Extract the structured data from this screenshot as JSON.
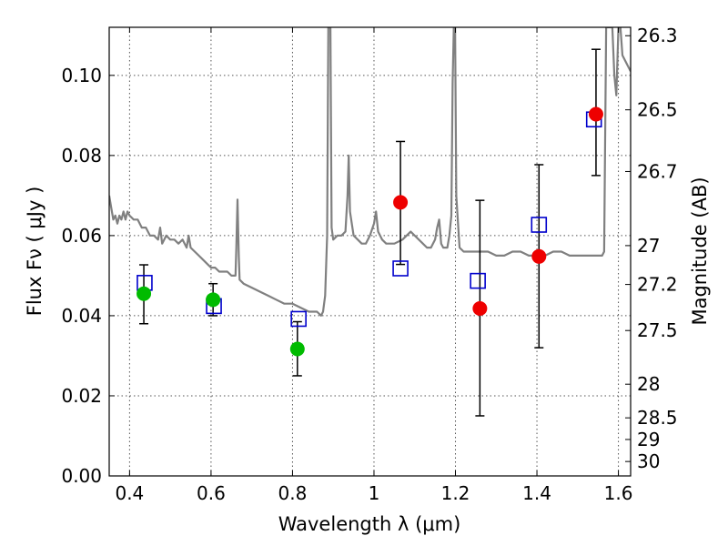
{
  "chart_data": {
    "type": "scatter",
    "title": "",
    "xlabel": "Wavelength  λ (μm)",
    "ylabel": "Flux  Fν  ( μJy )",
    "ylabel_right": "Magnitude (AB)",
    "xlim": [
      0.35,
      1.63
    ],
    "ylim": [
      0.0,
      0.112
    ],
    "grid": true,
    "x_ticks": [
      0.4,
      0.6,
      0.8,
      1.0,
      1.2,
      1.4,
      1.6
    ],
    "x_tick_labels": [
      "0.4",
      "0.6",
      "0.8",
      "1",
      "1.2",
      "1.4",
      "1.6"
    ],
    "y_ticks": [
      0.0,
      0.02,
      0.04,
      0.06,
      0.08,
      0.1
    ],
    "y_tick_labels": [
      "0.00",
      "0.02",
      "0.04",
      "0.06",
      "0.08",
      "0.10"
    ],
    "right_ticks": [
      {
        "flux": 0.1099,
        "label": "26.3"
      },
      {
        "flux": 0.0914,
        "label": "26.5"
      },
      {
        "flux": 0.076,
        "label": "26.7"
      },
      {
        "flux": 0.0575,
        "label": "27"
      },
      {
        "flux": 0.0478,
        "label": "27.2"
      },
      {
        "flux": 0.0363,
        "label": "27.5"
      },
      {
        "flux": 0.0229,
        "label": "28"
      },
      {
        "flux": 0.0145,
        "label": "28.5"
      },
      {
        "flux": 0.0091,
        "label": "29"
      },
      {
        "flux": 0.0036,
        "label": "30"
      }
    ],
    "spectrum": {
      "color": "#808080",
      "points": [
        [
          0.35,
          0.07
        ],
        [
          0.355,
          0.067
        ],
        [
          0.36,
          0.064
        ],
        [
          0.365,
          0.065
        ],
        [
          0.37,
          0.063
        ],
        [
          0.375,
          0.065
        ],
        [
          0.38,
          0.064
        ],
        [
          0.385,
          0.066
        ],
        [
          0.39,
          0.064
        ],
        [
          0.395,
          0.066
        ],
        [
          0.4,
          0.065
        ],
        [
          0.41,
          0.064
        ],
        [
          0.42,
          0.064
        ],
        [
          0.43,
          0.062
        ],
        [
          0.44,
          0.062
        ],
        [
          0.45,
          0.06
        ],
        [
          0.46,
          0.06
        ],
        [
          0.47,
          0.059
        ],
        [
          0.475,
          0.062
        ],
        [
          0.48,
          0.058
        ],
        [
          0.49,
          0.06
        ],
        [
          0.5,
          0.059
        ],
        [
          0.51,
          0.059
        ],
        [
          0.52,
          0.058
        ],
        [
          0.53,
          0.059
        ],
        [
          0.54,
          0.057
        ],
        [
          0.545,
          0.06
        ],
        [
          0.55,
          0.057
        ],
        [
          0.56,
          0.056
        ],
        [
          0.57,
          0.055
        ],
        [
          0.58,
          0.054
        ],
        [
          0.59,
          0.053
        ],
        [
          0.6,
          0.052
        ],
        [
          0.61,
          0.052
        ],
        [
          0.62,
          0.051
        ],
        [
          0.63,
          0.051
        ],
        [
          0.64,
          0.051
        ],
        [
          0.65,
          0.05
        ],
        [
          0.655,
          0.05
        ],
        [
          0.66,
          0.05
        ],
        [
          0.662,
          0.057
        ],
        [
          0.665,
          0.069
        ],
        [
          0.668,
          0.055
        ],
        [
          0.67,
          0.049
        ],
        [
          0.68,
          0.048
        ],
        [
          0.7,
          0.047
        ],
        [
          0.72,
          0.046
        ],
        [
          0.74,
          0.045
        ],
        [
          0.76,
          0.044
        ],
        [
          0.78,
          0.043
        ],
        [
          0.8,
          0.043
        ],
        [
          0.82,
          0.042
        ],
        [
          0.84,
          0.041
        ],
        [
          0.86,
          0.041
        ],
        [
          0.87,
          0.04
        ],
        [
          0.875,
          0.041
        ],
        [
          0.88,
          0.045
        ],
        [
          0.885,
          0.06
        ],
        [
          0.888,
          0.112
        ],
        [
          0.893,
          0.112
        ],
        [
          0.896,
          0.062
        ],
        [
          0.9,
          0.059
        ],
        [
          0.91,
          0.06
        ],
        [
          0.92,
          0.06
        ],
        [
          0.93,
          0.061
        ],
        [
          0.935,
          0.07
        ],
        [
          0.938,
          0.08
        ],
        [
          0.941,
          0.066
        ],
        [
          0.95,
          0.06
        ],
        [
          0.96,
          0.059
        ],
        [
          0.97,
          0.058
        ],
        [
          0.98,
          0.058
        ],
        [
          0.99,
          0.06
        ],
        [
          1.0,
          0.063
        ],
        [
          1.005,
          0.066
        ],
        [
          1.01,
          0.061
        ],
        [
          1.02,
          0.059
        ],
        [
          1.03,
          0.058
        ],
        [
          1.05,
          0.058
        ],
        [
          1.07,
          0.059
        ],
        [
          1.09,
          0.061
        ],
        [
          1.1,
          0.06
        ],
        [
          1.12,
          0.058
        ],
        [
          1.13,
          0.057
        ],
        [
          1.14,
          0.057
        ],
        [
          1.15,
          0.059
        ],
        [
          1.155,
          0.062
        ],
        [
          1.16,
          0.064
        ],
        [
          1.165,
          0.058
        ],
        [
          1.17,
          0.057
        ],
        [
          1.18,
          0.057
        ],
        [
          1.185,
          0.06
        ],
        [
          1.19,
          0.065
        ],
        [
          1.193,
          0.098
        ],
        [
          1.196,
          0.112
        ],
        [
          1.199,
          0.112
        ],
        [
          1.202,
          0.07
        ],
        [
          1.21,
          0.057
        ],
        [
          1.22,
          0.056
        ],
        [
          1.24,
          0.056
        ],
        [
          1.26,
          0.056
        ],
        [
          1.28,
          0.056
        ],
        [
          1.3,
          0.055
        ],
        [
          1.32,
          0.055
        ],
        [
          1.34,
          0.056
        ],
        [
          1.36,
          0.056
        ],
        [
          1.38,
          0.055
        ],
        [
          1.4,
          0.055
        ],
        [
          1.42,
          0.055
        ],
        [
          1.44,
          0.056
        ],
        [
          1.46,
          0.056
        ],
        [
          1.48,
          0.055
        ],
        [
          1.5,
          0.055
        ],
        [
          1.52,
          0.055
        ],
        [
          1.54,
          0.055
        ],
        [
          1.56,
          0.055
        ],
        [
          1.565,
          0.056
        ],
        [
          1.57,
          0.112
        ],
        [
          1.585,
          0.112
        ],
        [
          1.59,
          0.1
        ],
        [
          1.595,
          0.095
        ],
        [
          1.6,
          0.112
        ],
        [
          1.605,
          0.112
        ],
        [
          1.61,
          0.105
        ],
        [
          1.62,
          0.103
        ],
        [
          1.63,
          0.101
        ]
      ]
    },
    "series": [
      {
        "marker": "circle",
        "color": "#00bb00",
        "points": [
          {
            "x": 0.435,
            "y": 0.0455,
            "err_low": 0.038,
            "err_high": 0.0527
          },
          {
            "x": 0.605,
            "y": 0.044,
            "err_low": 0.04,
            "err_high": 0.048
          },
          {
            "x": 0.812,
            "y": 0.0317,
            "err_low": 0.025,
            "err_high": 0.0385
          }
        ]
      },
      {
        "marker": "circle",
        "color": "#ee0000",
        "points": [
          {
            "x": 1.065,
            "y": 0.0683,
            "err_low": 0.0528,
            "err_high": 0.0835
          },
          {
            "x": 1.26,
            "y": 0.0418,
            "err_low": 0.015,
            "err_high": 0.0688
          },
          {
            "x": 1.405,
            "y": 0.0548,
            "err_low": 0.032,
            "err_high": 0.0777
          },
          {
            "x": 1.545,
            "y": 0.0903,
            "err_low": 0.075,
            "err_high": 0.1065
          }
        ]
      },
      {
        "marker": "square-open",
        "color": "#0000cc",
        "points": [
          {
            "x": 0.437,
            "y": 0.0482
          },
          {
            "x": 0.607,
            "y": 0.0424
          },
          {
            "x": 0.815,
            "y": 0.0392
          },
          {
            "x": 1.065,
            "y": 0.0518
          },
          {
            "x": 1.255,
            "y": 0.0487
          },
          {
            "x": 1.405,
            "y": 0.0627
          },
          {
            "x": 1.54,
            "y": 0.089
          }
        ]
      }
    ]
  }
}
